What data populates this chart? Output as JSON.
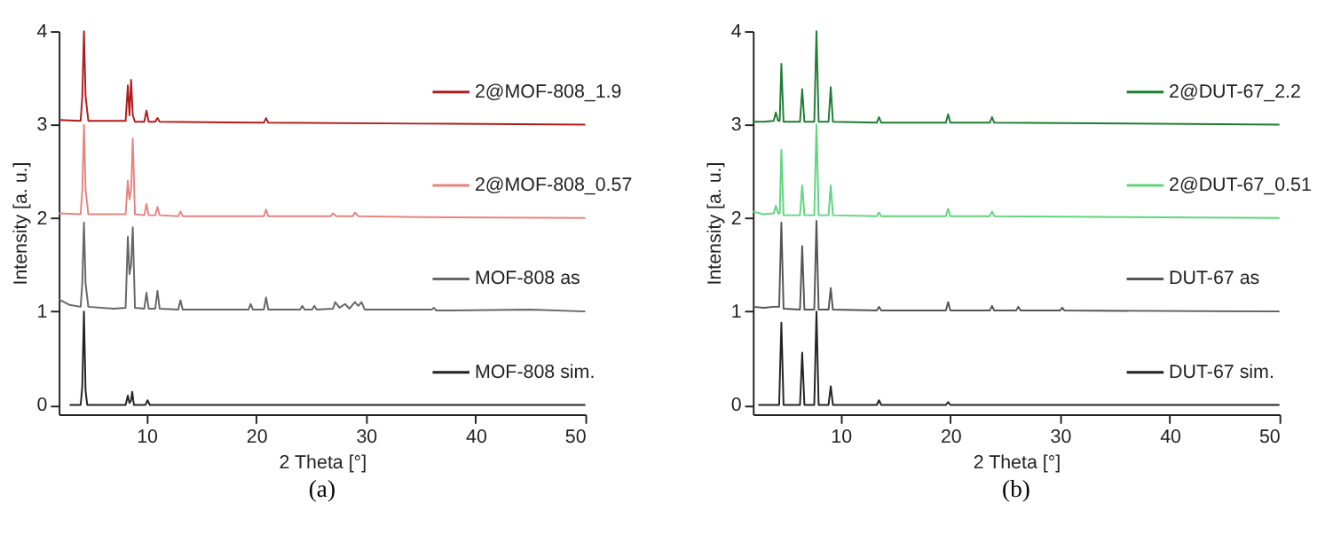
{
  "chart_data": [
    {
      "type": "line",
      "title": "(a)",
      "xlabel": "2 Theta [°]",
      "ylabel": "Intensity [a. u.]",
      "xlim": [
        2,
        50
      ],
      "xticks": [
        10,
        20,
        30,
        40,
        50
      ],
      "ylim": [
        -0.1,
        4.0
      ],
      "yticks": [
        {
          "value": 0,
          "label": "0"
        },
        {
          "value": 1,
          "label": "1"
        },
        {
          "value": 2,
          "label": "2"
        },
        {
          "value": 3,
          "label": "3"
        },
        {
          "value": 4,
          "label": "4"
        }
      ],
      "grid": false,
      "legend": "right",
      "series": [
        {
          "name": "2@MOF-808_1.9",
          "color": "#b01c1c",
          "x": [
            2,
            4.0,
            4.15,
            4.3,
            4.45,
            4.7,
            8.1,
            8.3,
            8.45,
            8.6,
            8.75,
            8.95,
            9.8,
            10.0,
            10.2,
            10.8,
            11.0,
            11.2,
            20.7,
            20.9,
            21.1,
            35,
            50
          ],
          "values": [
            3.05,
            3.04,
            3.3,
            4.0,
            3.3,
            3.04,
            3.04,
            3.42,
            3.1,
            3.48,
            3.1,
            3.03,
            3.03,
            3.15,
            3.03,
            3.03,
            3.07,
            3.03,
            3.02,
            3.07,
            3.02,
            3.01,
            3.0
          ]
        },
        {
          "name": "2@MOF-808_0.57",
          "color": "#e8837f",
          "x": [
            2,
            4.0,
            4.15,
            4.3,
            4.45,
            4.7,
            8.1,
            8.3,
            8.45,
            8.6,
            8.75,
            8.95,
            9.8,
            10.0,
            10.2,
            10.8,
            11.0,
            11.2,
            12.9,
            13.1,
            13.3,
            20.7,
            20.9,
            21.1,
            26.8,
            27.0,
            27.3,
            28.8,
            29.0,
            29.3,
            35,
            50
          ],
          "values": [
            2.05,
            2.04,
            2.3,
            3.0,
            2.3,
            2.04,
            2.04,
            2.4,
            2.2,
            2.3,
            2.85,
            2.04,
            2.03,
            2.15,
            2.03,
            2.03,
            2.12,
            2.03,
            2.02,
            2.07,
            2.02,
            2.02,
            2.09,
            2.02,
            2.02,
            2.05,
            2.02,
            2.02,
            2.06,
            2.02,
            2.01,
            2.0
          ]
        },
        {
          "name": "MOF-808 as",
          "color": "#666666",
          "x": [
            2,
            3,
            4.0,
            4.15,
            4.3,
            4.45,
            4.7,
            7.0,
            8.1,
            8.3,
            8.45,
            8.6,
            8.75,
            8.95,
            9.8,
            10.0,
            10.2,
            10.8,
            11.0,
            11.2,
            12.9,
            13.1,
            13.3,
            19.3,
            19.5,
            19.7,
            20.7,
            20.9,
            21.1,
            24.0,
            24.2,
            24.4,
            25.1,
            25.3,
            25.5,
            27.0,
            27.2,
            27.6,
            28.1,
            28.5,
            29.0,
            29.3,
            29.6,
            29.9,
            36.0,
            36.2,
            36.4,
            45,
            50
          ],
          "values": [
            1.13,
            1.07,
            1.05,
            1.3,
            1.95,
            1.3,
            1.05,
            1.03,
            1.04,
            1.8,
            1.4,
            1.5,
            1.9,
            1.04,
            1.03,
            1.2,
            1.03,
            1.03,
            1.22,
            1.03,
            1.02,
            1.12,
            1.02,
            1.02,
            1.08,
            1.02,
            1.02,
            1.15,
            1.02,
            1.02,
            1.06,
            1.02,
            1.02,
            1.06,
            1.02,
            1.03,
            1.1,
            1.04,
            1.08,
            1.03,
            1.1,
            1.06,
            1.1,
            1.02,
            1.02,
            1.04,
            1.01,
            1.02,
            1.0
          ]
        },
        {
          "name": "MOF-808 sim.",
          "color": "#222222",
          "x": [
            3,
            4.0,
            4.15,
            4.3,
            4.45,
            4.6,
            8.1,
            8.3,
            8.45,
            8.6,
            8.7,
            8.85,
            9.9,
            10.1,
            10.3,
            50
          ],
          "values": [
            0,
            0,
            0.2,
            1.0,
            0.15,
            0,
            0,
            0.1,
            0.02,
            0.05,
            0.14,
            0,
            0,
            0.05,
            0,
            0
          ]
        }
      ]
    },
    {
      "type": "line",
      "title": "(b)",
      "xlabel": "2 Theta [°]",
      "ylabel": "Intensity [a. u.]",
      "xlim": [
        2,
        50
      ],
      "xticks": [
        10,
        20,
        30,
        40,
        50
      ],
      "ylim": [
        -0.1,
        4.0
      ],
      "yticks": [
        {
          "value": 0,
          "label": "0"
        },
        {
          "value": 1,
          "label": "1"
        },
        {
          "value": 2,
          "label": "2"
        },
        {
          "value": 3,
          "label": "3"
        },
        {
          "value": 4,
          "label": "4"
        }
      ],
      "grid": false,
      "legend": "right",
      "series": [
        {
          "name": "2@DUT-67_2.2",
          "color": "#1e7d32",
          "x": [
            2,
            3,
            3.9,
            4.1,
            4.3,
            4.45,
            4.6,
            4.8,
            6.3,
            6.5,
            6.7,
            7.6,
            7.8,
            8.0,
            8.9,
            9.1,
            9.3,
            13.3,
            13.5,
            13.7,
            19.6,
            19.8,
            20.0,
            23.6,
            23.8,
            24.0,
            50
          ],
          "values": [
            3.03,
            3.03,
            3.04,
            3.13,
            3.04,
            3.04,
            3.65,
            3.03,
            3.03,
            3.38,
            3.03,
            3.03,
            4.0,
            3.03,
            3.03,
            3.4,
            3.03,
            3.02,
            3.08,
            3.02,
            3.02,
            3.11,
            3.02,
            3.02,
            3.08,
            3.02,
            3.0
          ]
        },
        {
          "name": "2@DUT-67_0.51",
          "color": "#5ed67d",
          "x": [
            2,
            3,
            3.9,
            4.1,
            4.3,
            4.45,
            4.6,
            4.8,
            6.3,
            6.5,
            6.7,
            7.6,
            7.8,
            8.0,
            8.9,
            9.1,
            9.3,
            13.3,
            13.5,
            13.7,
            19.6,
            19.8,
            20.0,
            23.6,
            23.8,
            24.0,
            50
          ],
          "values": [
            2.07,
            2.04,
            2.05,
            2.13,
            2.05,
            2.05,
            2.73,
            2.03,
            2.03,
            2.35,
            2.03,
            2.03,
            3.0,
            2.03,
            2.03,
            2.35,
            2.03,
            2.02,
            2.06,
            2.02,
            2.02,
            2.1,
            2.02,
            2.02,
            2.07,
            2.02,
            2.0
          ]
        },
        {
          "name": "DUT-67 as",
          "color": "#555555",
          "x": [
            2,
            3,
            3.9,
            4.4,
            4.6,
            4.8,
            6.3,
            6.5,
            6.7,
            7.6,
            7.8,
            8.0,
            8.9,
            9.1,
            9.3,
            13.3,
            13.5,
            13.7,
            19.6,
            19.8,
            20.0,
            23.6,
            23.8,
            24.0,
            26,
            26.2,
            26.4,
            30,
            30.2,
            30.4,
            50
          ],
          "values": [
            1.05,
            1.04,
            1.05,
            1.05,
            1.95,
            1.03,
            1.02,
            1.7,
            1.02,
            1.02,
            1.97,
            1.02,
            1.02,
            1.25,
            1.02,
            1.01,
            1.05,
            1.01,
            1.01,
            1.1,
            1.01,
            1.01,
            1.06,
            1.01,
            1.01,
            1.05,
            1.01,
            1.01,
            1.04,
            1.01,
            1.0
          ]
        },
        {
          "name": "DUT-67 sim.",
          "color": "#222222",
          "x": [
            2.5,
            4.4,
            4.6,
            4.8,
            6.3,
            6.5,
            6.7,
            7.6,
            7.8,
            8.0,
            8.9,
            9.1,
            9.3,
            13.3,
            13.5,
            13.7,
            19.6,
            19.8,
            20.0,
            50
          ],
          "values": [
            0,
            0,
            0.88,
            0,
            0,
            0.56,
            0,
            0,
            1.0,
            0,
            0,
            0.2,
            0,
            0,
            0.05,
            0,
            0,
            0.03,
            0,
            0
          ]
        }
      ]
    }
  ]
}
